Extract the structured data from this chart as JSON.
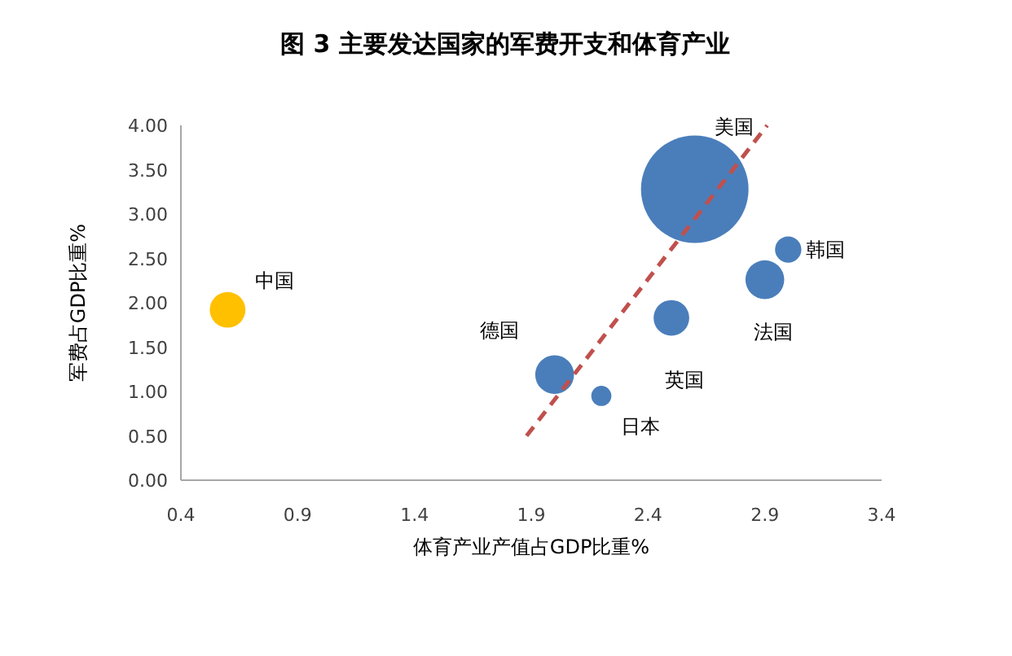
{
  "chart_data": {
    "type": "bubble",
    "title": "图 3 主要发达国家的军费开支和体育产业",
    "xlabel": "体育产业产值占GDP比重%",
    "ylabel": "军费占GDP比重%",
    "xlim": [
      0.4,
      3.4
    ],
    "xticks": [
      0.4,
      0.9,
      1.4,
      1.9,
      2.4,
      2.9,
      3.4
    ],
    "ylim": [
      0,
      4
    ],
    "yticks": [
      {
        "value": 0,
        "label": "0.00"
      },
      {
        "value": 0.5,
        "label": "0.50"
      },
      {
        "value": 1,
        "label": "1.00"
      },
      {
        "value": 1.5,
        "label": "1.50"
      },
      {
        "value": 2,
        "label": "2.00"
      },
      {
        "value": 2.5,
        "label": "2.50"
      },
      {
        "value": 3,
        "label": "3.00"
      },
      {
        "value": 3.5,
        "label": "3.50"
      },
      {
        "value": 4,
        "label": "4.00"
      }
    ],
    "series": [
      {
        "name": "中国",
        "color": "#ffc000",
        "x": [
          0.6
        ],
        "values": [
          1.92
        ],
        "sizes": [
          0.11
        ]
      },
      {
        "name": "德国",
        "color": "#4a7ebb",
        "x": [
          2.0
        ],
        "values": [
          1.19
        ],
        "sizes": [
          0.13
        ]
      },
      {
        "name": "日本",
        "color": "#4a7ebb",
        "x": [
          2.2
        ],
        "values": [
          0.95
        ],
        "sizes": [
          0.035
        ]
      },
      {
        "name": "英国",
        "color": "#4a7ebb",
        "x": [
          2.5
        ],
        "values": [
          1.83
        ],
        "sizes": [
          0.11
        ]
      },
      {
        "name": "美国",
        "color": "#4a7ebb",
        "x": [
          2.6
        ],
        "values": [
          3.28
        ],
        "sizes": [
          1
        ]
      },
      {
        "name": "法国",
        "color": "#4a7ebb",
        "x": [
          2.9
        ],
        "values": [
          2.26
        ],
        "sizes": [
          0.13
        ]
      },
      {
        "name": "韩国",
        "color": "#4a7ebb",
        "x": [
          3.0
        ],
        "values": [
          2.6
        ],
        "sizes": [
          0.06
        ]
      },
      {
        "type": "line",
        "color": "#c0504d",
        "line_style": "dashed",
        "x": [
          1.88,
          2.91
        ],
        "values": [
          0.5,
          4.0
        ]
      }
    ]
  }
}
